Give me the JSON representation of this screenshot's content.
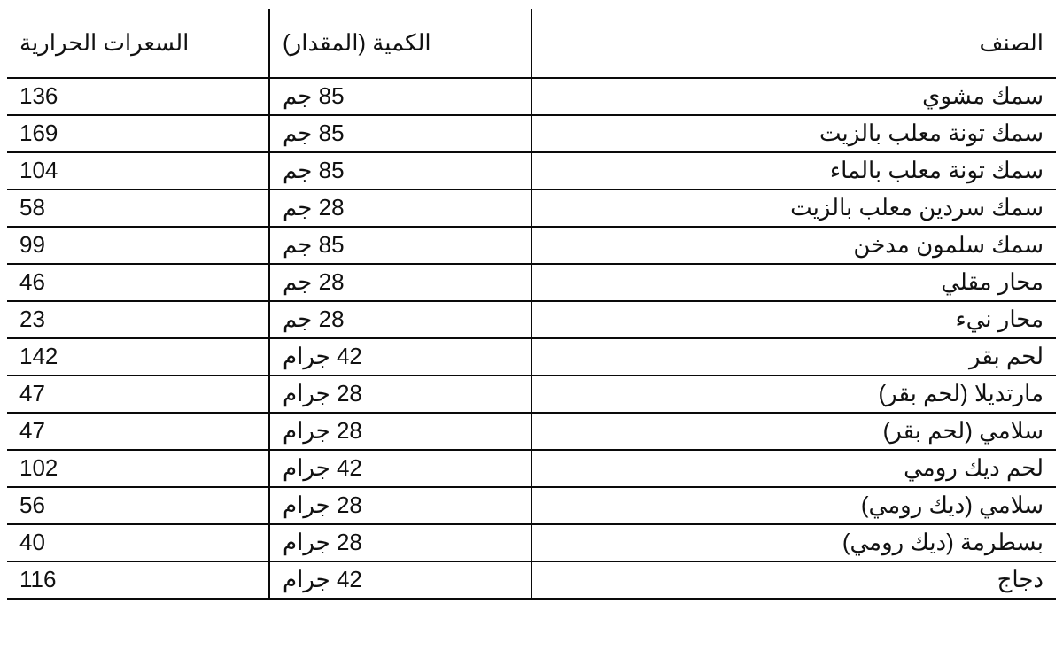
{
  "table": {
    "background_color": "#ffffff",
    "border_color": "#0a0a0a",
    "border_width": 2,
    "font_family": "Tahoma, Arial, sans-serif",
    "font_size": 26,
    "text_color": "#111111",
    "header_row_height": 78,
    "body_row_height": 42,
    "columns": [
      {
        "key": "item",
        "label": "الصنف",
        "align": "right",
        "width_pct": 50
      },
      {
        "key": "amount",
        "label": "الكمية (المقدار)",
        "align": "left",
        "width_pct": 25
      },
      {
        "key": "calories",
        "label": "السعرات الحرارية",
        "align": "left",
        "width_pct": 25
      }
    ],
    "rows": [
      {
        "item": "سمك مشوي",
        "amount": "85 جم",
        "calories": "136"
      },
      {
        "item": "سمك تونة معلب بالزيت",
        "amount": "85 جم",
        "calories": "169"
      },
      {
        "item": "سمك تونة معلب بالماء",
        "amount": "85 جم",
        "calories": "104"
      },
      {
        "item": "سمك سردين معلب بالزيت",
        "amount": "28 جم",
        "calories": "58"
      },
      {
        "item": "سمك سلمون مدخن",
        "amount": "85 جم",
        "calories": "99"
      },
      {
        "item": "محار مقلي",
        "amount": "28 جم",
        "calories": "46"
      },
      {
        "item": "محار نيء",
        "amount": "28 جم",
        "calories": "23"
      },
      {
        "item": "لحم بقر",
        "amount": "42 جرام",
        "calories": "142"
      },
      {
        "item": "مارتديلا (لحم بقر)",
        "amount": "28 جرام",
        "calories": "47"
      },
      {
        "item": "سلامي (لحم بقر)",
        "amount": "28 جرام",
        "calories": "47"
      },
      {
        "item": "لحم ديك رومي",
        "amount": "42 جرام",
        "calories": "102"
      },
      {
        "item": "سلامي (ديك رومي)",
        "amount": "28 جرام",
        "calories": "56"
      },
      {
        "item": "بسطرمة (ديك رومي)",
        "amount": "28 جرام",
        "calories": "40"
      },
      {
        "item": "دجاج",
        "amount": "42 جرام",
        "calories": "116"
      }
    ]
  }
}
